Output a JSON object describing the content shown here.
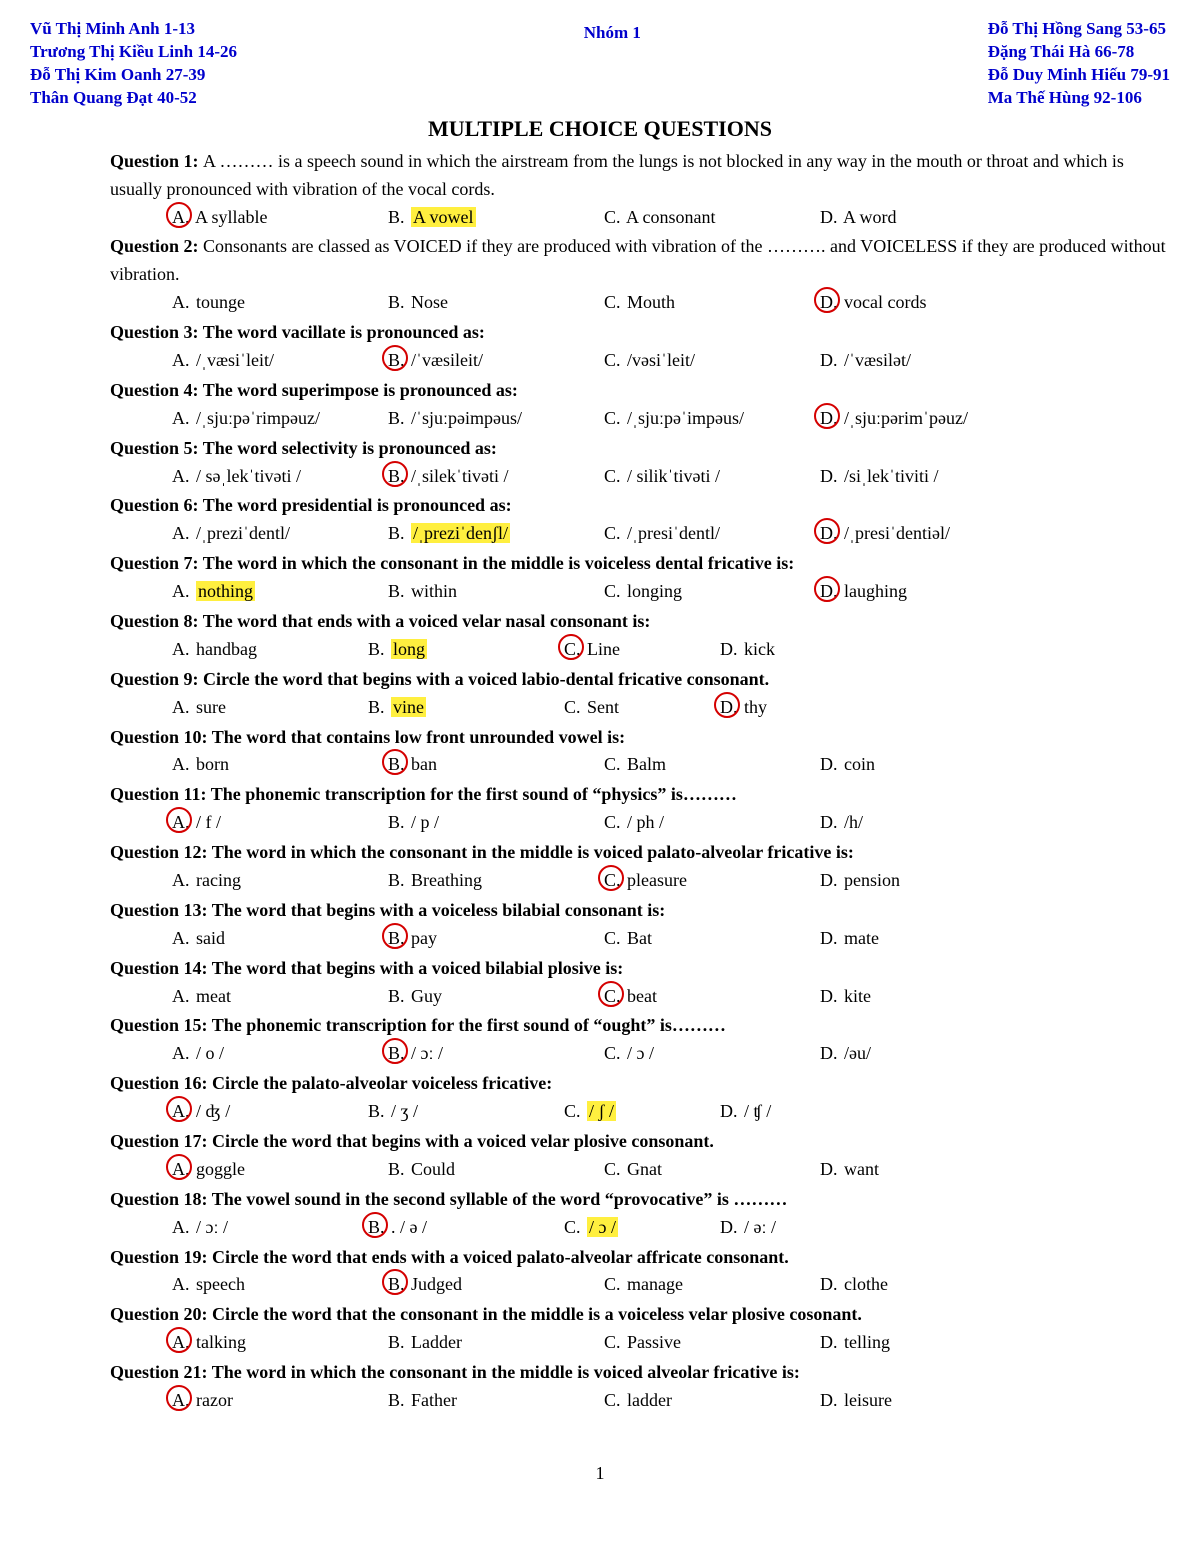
{
  "header": {
    "left": [
      "Vũ Thị Minh Anh 1-13",
      "Trương Thị Kiều Linh 14-26",
      "Đỗ Thị Kim Oanh 27-39",
      "Thân Quang Đạt 40-52"
    ],
    "center": "Nhóm 1",
    "right": [
      "Đỗ Thị Hồng Sang 53-65",
      "Đặng Thái Hà 66-78",
      "Đỗ Duy Minh Hiếu 79-91",
      "Ma Thế Hùng 92-106"
    ]
  },
  "title": "MULTIPLE CHOICE QUESTIONS",
  "page_number": "1",
  "questions": [
    {
      "n": 1,
      "bold_prompt": false,
      "text": "A ……… is a speech sound in which the airstream from the lungs is not blocked in any way in the mouth or throat and which is usually pronounced with vibration of the vocal cords.",
      "choices": [
        {
          "l": "A",
          "t": "A syllable",
          "circ": true
        },
        {
          "l": "B",
          "t": "A vowel",
          "hl": true
        },
        {
          "l": "C",
          "t": "A consonant"
        },
        {
          "l": "D",
          "t": "A word"
        }
      ]
    },
    {
      "n": 2,
      "bold_prompt": false,
      "text": " Consonants are classed as VOICED if they are produced with vibration of the ………. and VOICELESS if they are produced without vibration.",
      "choices": [
        {
          "l": "A",
          "t": "tounge"
        },
        {
          "l": "B",
          "t": "Nose"
        },
        {
          "l": "C",
          "t": "Mouth"
        },
        {
          "l": "D",
          "t": "vocal cords",
          "circ": true
        }
      ]
    },
    {
      "n": 3,
      "bold_prompt": true,
      "text": "The word vacillate is pronounced as:",
      "choices": [
        {
          "l": "A",
          "t": "/ˌvæsiˈleit/"
        },
        {
          "l": "B",
          "t": "/ˈvæsileit/",
          "circ": true
        },
        {
          "l": "C",
          "t": "/vəsiˈleit/"
        },
        {
          "l": "D",
          "t": "/ˈvæsilət/"
        }
      ]
    },
    {
      "n": 4,
      "bold_prompt": true,
      "text": "The word superimpose is pronounced as:",
      "choices": [
        {
          "l": "A",
          "t": "/ˌsjuːpəˈrimpəuz/"
        },
        {
          "l": "B",
          "t": "/ˈsjuːpəimpəus/"
        },
        {
          "l": "C",
          "t": "/ˌsjuːpəˈimpəus/"
        },
        {
          "l": "D",
          "t": "/ˌsjuːpərimˈpəuz/",
          "circ": true
        }
      ]
    },
    {
      "n": 5,
      "bold_prompt": true,
      "text": "The word selectivity is pronounced as:",
      "choices": [
        {
          "l": "A",
          "t": "/ səˌlekˈtivəti /"
        },
        {
          "l": "B",
          "t": "/ˌsilekˈtivəti /",
          "circ": true
        },
        {
          "l": "C",
          "t": "/ silikˈtivəti /"
        },
        {
          "l": "D",
          "t": "/siˌlekˈtiviti /"
        }
      ]
    },
    {
      "n": 6,
      "bold_prompt": true,
      "text": "The word presidential is pronounced as:",
      "choices": [
        {
          "l": "A",
          "t": "/ˌpreziˈdentl/"
        },
        {
          "l": "B",
          "t": "/ˌpreziˈdenʃl/",
          "hl": true
        },
        {
          "l": "C",
          "t": "/ˌpresiˈdentl/"
        },
        {
          "l": "D",
          "t": "/ˌpresiˈdentiəl/",
          "circ": true
        }
      ]
    },
    {
      "n": 7,
      "bold_prompt": true,
      "text": "The word in which the consonant in the middle is voiceless dental fricative is:",
      "choices": [
        {
          "l": "A",
          "t": "nothing",
          "hl": true
        },
        {
          "l": "B",
          "t": "within"
        },
        {
          "l": "C",
          "t": "longing"
        },
        {
          "l": "D",
          "t": "laughing",
          "circ": true
        }
      ]
    },
    {
      "n": 8,
      "bold_prompt": true,
      "text": "The word that ends with a voiced velar nasal consonant is:",
      "choices": [
        {
          "l": "A",
          "t": "handbag"
        },
        {
          "l": "B",
          "t": "long",
          "hl": true
        },
        {
          "l": "C",
          "t": "Line",
          "circ": true
        },
        {
          "l": "D",
          "t": "kick"
        }
      ],
      "narrow": true
    },
    {
      "n": 9,
      "bold_prompt": true,
      "text": "Circle the word that begins with a voiced labio-dental fricative consonant.",
      "choices": [
        {
          "l": "A",
          "t": "sure"
        },
        {
          "l": "B",
          "t": "vine",
          "hl": true
        },
        {
          "l": "C",
          "t": "Sent"
        },
        {
          "l": "D",
          "t": "thy",
          "circ": true
        }
      ],
      "narrow": true
    },
    {
      "n": 10,
      "bold_prompt": true,
      "text": "The word that contains low front unrounded vowel is:",
      "choices": [
        {
          "l": "A",
          "t": "born"
        },
        {
          "l": "B",
          "t": "ban",
          "circ": true
        },
        {
          "l": "C",
          "t": "Balm"
        },
        {
          "l": "D",
          "t": "coin"
        }
      ]
    },
    {
      "n": 11,
      "bold_prompt": true,
      "text": "The phonemic transcription for the first sound of “physics” is………",
      "choices": [
        {
          "l": "A",
          "t": "/ f /",
          "circ": true
        },
        {
          "l": "B",
          "t": "/ p /"
        },
        {
          "l": "C",
          "t": "/ ph /"
        },
        {
          "l": "D",
          "t": "/h/"
        }
      ]
    },
    {
      "n": 12,
      "bold_prompt": true,
      "text": "The word in which the consonant in the middle is voiced palato-alveolar fricative is:",
      "choices": [
        {
          "l": "A",
          "t": "racing"
        },
        {
          "l": "B",
          "t": "Breathing"
        },
        {
          "l": "C",
          "t": "pleasure",
          "circ": true
        },
        {
          "l": "D",
          "t": "pension"
        }
      ]
    },
    {
      "n": 13,
      "bold_prompt": true,
      "text": "The word that begins with a voiceless bilabial consonant is:",
      "choices": [
        {
          "l": "A",
          "t": "said"
        },
        {
          "l": "B",
          "t": "pay",
          "circ": true
        },
        {
          "l": "C",
          "t": "Bat"
        },
        {
          "l": "D",
          "t": "mate"
        }
      ]
    },
    {
      "n": 14,
      "bold_prompt": true,
      "text": "The word that begins with a voiced bilabial plosive is:",
      "choices": [
        {
          "l": "A",
          "t": "meat"
        },
        {
          "l": "B",
          "t": "Guy"
        },
        {
          "l": "C",
          "t": "beat",
          "circ": true
        },
        {
          "l": "D",
          "t": "kite"
        }
      ]
    },
    {
      "n": 15,
      "bold_prompt": true,
      "text": "The phonemic transcription for the first sound of “ought” is………",
      "choices": [
        {
          "l": "A",
          "t": "/ o /"
        },
        {
          "l": "B",
          "t": "/ ɔː /",
          "circ": true
        },
        {
          "l": "C",
          "t": "/ ɔ /"
        },
        {
          "l": "D",
          "t": "/əu/"
        }
      ]
    },
    {
      "n": 16,
      "bold_prompt": true,
      "text": "Circle the palato-alveolar voiceless fricative:",
      "choices": [
        {
          "l": "A",
          "t": "/ ʤ /",
          "circ": true
        },
        {
          "l": "B",
          "t": "/ ʒ /"
        },
        {
          "l": "C",
          "t": "/ ʃ /",
          "hl": true
        },
        {
          "l": "D",
          "t": "/ ʧ /"
        }
      ],
      "narrow": true
    },
    {
      "n": 17,
      "bold_prompt": true,
      "text": "Circle the word that begins with a voiced velar plosive consonant.",
      "choices": [
        {
          "l": "A",
          "t": "goggle",
          "circ": true
        },
        {
          "l": "B",
          "t": "Could"
        },
        {
          "l": "C",
          "t": "Gnat"
        },
        {
          "l": "D",
          "t": "want"
        }
      ]
    },
    {
      "n": 18,
      "bold_prompt": true,
      "text": "The vowel sound in the second syllable of the word “provocative” is ………",
      "choices": [
        {
          "l": "A",
          "t": "/ ɔː /"
        },
        {
          "l": "B",
          "t": ". / ə /",
          "circ": true
        },
        {
          "l": "C",
          "t": "/ ɔ /",
          "hl": true
        },
        {
          "l": "D",
          "t": "/ əː /"
        }
      ],
      "narrow": true
    },
    {
      "n": 19,
      "bold_prompt": true,
      "text": "Circle the word that ends with a voiced palato-alveolar affricate consonant.",
      "choices": [
        {
          "l": "A",
          "t": "speech"
        },
        {
          "l": "B",
          "t": "Judged",
          "circ": true
        },
        {
          "l": "C",
          "t": "manage"
        },
        {
          "l": "D",
          "t": "clothe"
        }
      ]
    },
    {
      "n": 20,
      "bold_prompt": true,
      "text": "Circle the word that the consonant in the middle is a voiceless velar plosive cosonant.",
      "choices": [
        {
          "l": "A",
          "t": "talking",
          "circ": true
        },
        {
          "l": "B",
          "t": "Ladder"
        },
        {
          "l": "C",
          "t": "Passive"
        },
        {
          "l": "D",
          "t": "telling"
        }
      ]
    },
    {
      "n": 21,
      "bold_prompt": true,
      "text": "The word in which the consonant in the middle is voiced alveolar fricative is:",
      "choices": [
        {
          "l": "A",
          "t": "razor",
          "circ": true
        },
        {
          "l": "B",
          "t": "Father"
        },
        {
          "l": "C",
          "t": "ladder"
        },
        {
          "l": "D",
          "t": "leisure"
        }
      ]
    }
  ]
}
